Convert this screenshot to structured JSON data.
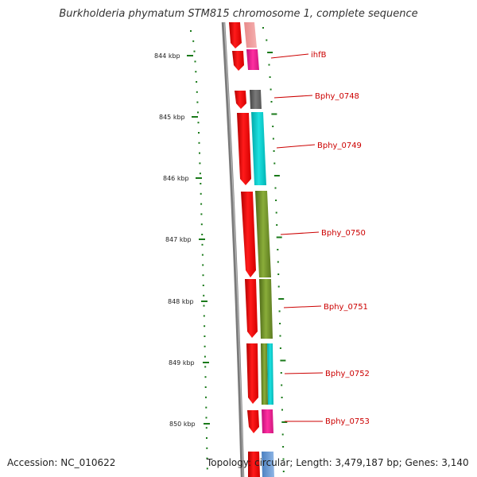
{
  "title": "Burkholderia phymatum STM815 chromosome 1, complete sequence",
  "ticks": [
    "844 kbp",
    "845 kbp",
    "846 kbp",
    "847 kbp",
    "848 kbp",
    "849 kbp",
    "850 kbp"
  ],
  "genes": [
    {
      "name": "ihfB",
      "color": "#ff1493"
    },
    {
      "name": "Bphy_0748",
      "color": "#666666"
    },
    {
      "name": "Bphy_0749",
      "color": "#00cccc"
    },
    {
      "name": "Bphy_0750",
      "color": "#6b8e23"
    },
    {
      "name": "Bphy_0751",
      "color": "#6b8e23"
    },
    {
      "name": "Bphy_0752",
      "color": "#6b8e23"
    },
    {
      "name": "Bphy_0753",
      "color": "#ff1493"
    }
  ],
  "footer": {
    "accession": "Accession: NC_010622",
    "topology": "Topology: circular; Length: 3,479,187 bp; Genes: 3,140"
  },
  "colors": {
    "backbone": "#808080",
    "cds": "#ff0000",
    "tick": "#1a7a1a",
    "label_line": "#cc0000"
  }
}
